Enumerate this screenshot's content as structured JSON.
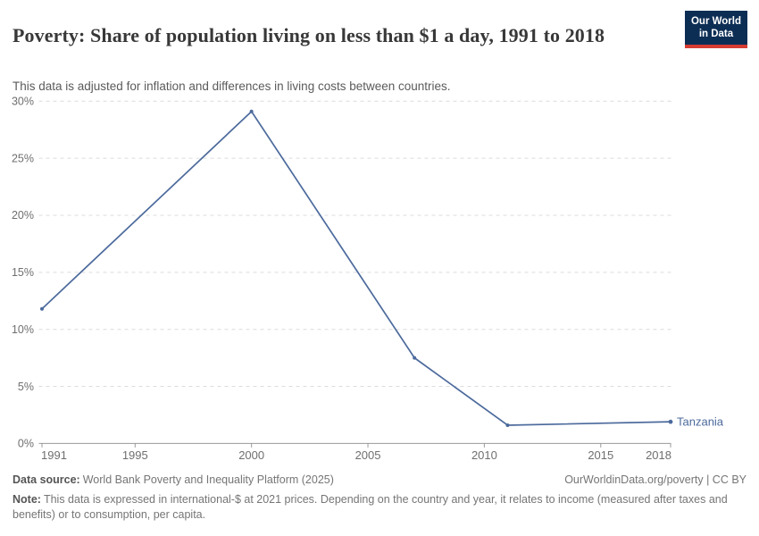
{
  "header": {
    "title": "Poverty: Share of population living on less than $1 a day, 1991 to 2018",
    "subtitle": "This data is adjusted for inflation and differences in living costs between countries.",
    "logo": {
      "line1": "Our World",
      "line2": "in Data"
    }
  },
  "colors": {
    "line": "#4C6A9C",
    "end_label": "#4C6A9C",
    "grid": "#dcdcdc",
    "axis": "#9a9a9a",
    "tick_label": "#6f6f6f",
    "logo_bg": "#0d2e54",
    "logo_accent": "#d63c32"
  },
  "chart_data": {
    "type": "line",
    "title": "Poverty: Share of population living on less than $1 a day, 1991 to 2018",
    "xlabel": "",
    "ylabel": "",
    "xlim": [
      1991,
      2018
    ],
    "ylim": [
      0,
      30
    ],
    "grid": "horizontal-dashed",
    "legend_position": "end-of-line-label",
    "x_ticks": [
      {
        "v": 1991,
        "label": "1991"
      },
      {
        "v": 1995,
        "label": "1995"
      },
      {
        "v": 2000,
        "label": "2000"
      },
      {
        "v": 2005,
        "label": "2005"
      },
      {
        "v": 2010,
        "label": "2010"
      },
      {
        "v": 2015,
        "label": "2015"
      },
      {
        "v": 2018,
        "label": "2018"
      }
    ],
    "y_ticks": [
      {
        "v": 0,
        "label": "0%"
      },
      {
        "v": 5,
        "label": "5%"
      },
      {
        "v": 10,
        "label": "10%"
      },
      {
        "v": 15,
        "label": "15%"
      },
      {
        "v": 20,
        "label": "20%"
      },
      {
        "v": 25,
        "label": "25%"
      },
      {
        "v": 30,
        "label": "30%"
      }
    ],
    "series": [
      {
        "name": "Tanzania",
        "color": "#4C6A9C",
        "points": [
          {
            "x": 1991,
            "y": 11.8
          },
          {
            "x": 2000,
            "y": 29.1
          },
          {
            "x": 2007,
            "y": 7.5
          },
          {
            "x": 2011,
            "y": 1.6
          },
          {
            "x": 2018,
            "y": 1.9
          }
        ]
      }
    ]
  },
  "footer": {
    "source_label": "Data source:",
    "source_text": "World Bank Poverty and Inequality Platform (2025)",
    "credit": "OurWorldinData.org/poverty | CC BY",
    "note_label": "Note:",
    "note_text": "This data is expressed in international-$ at 2021 prices. Depending on the country and year, it relates to income (measured after taxes and benefits) or to consumption, per capita."
  }
}
